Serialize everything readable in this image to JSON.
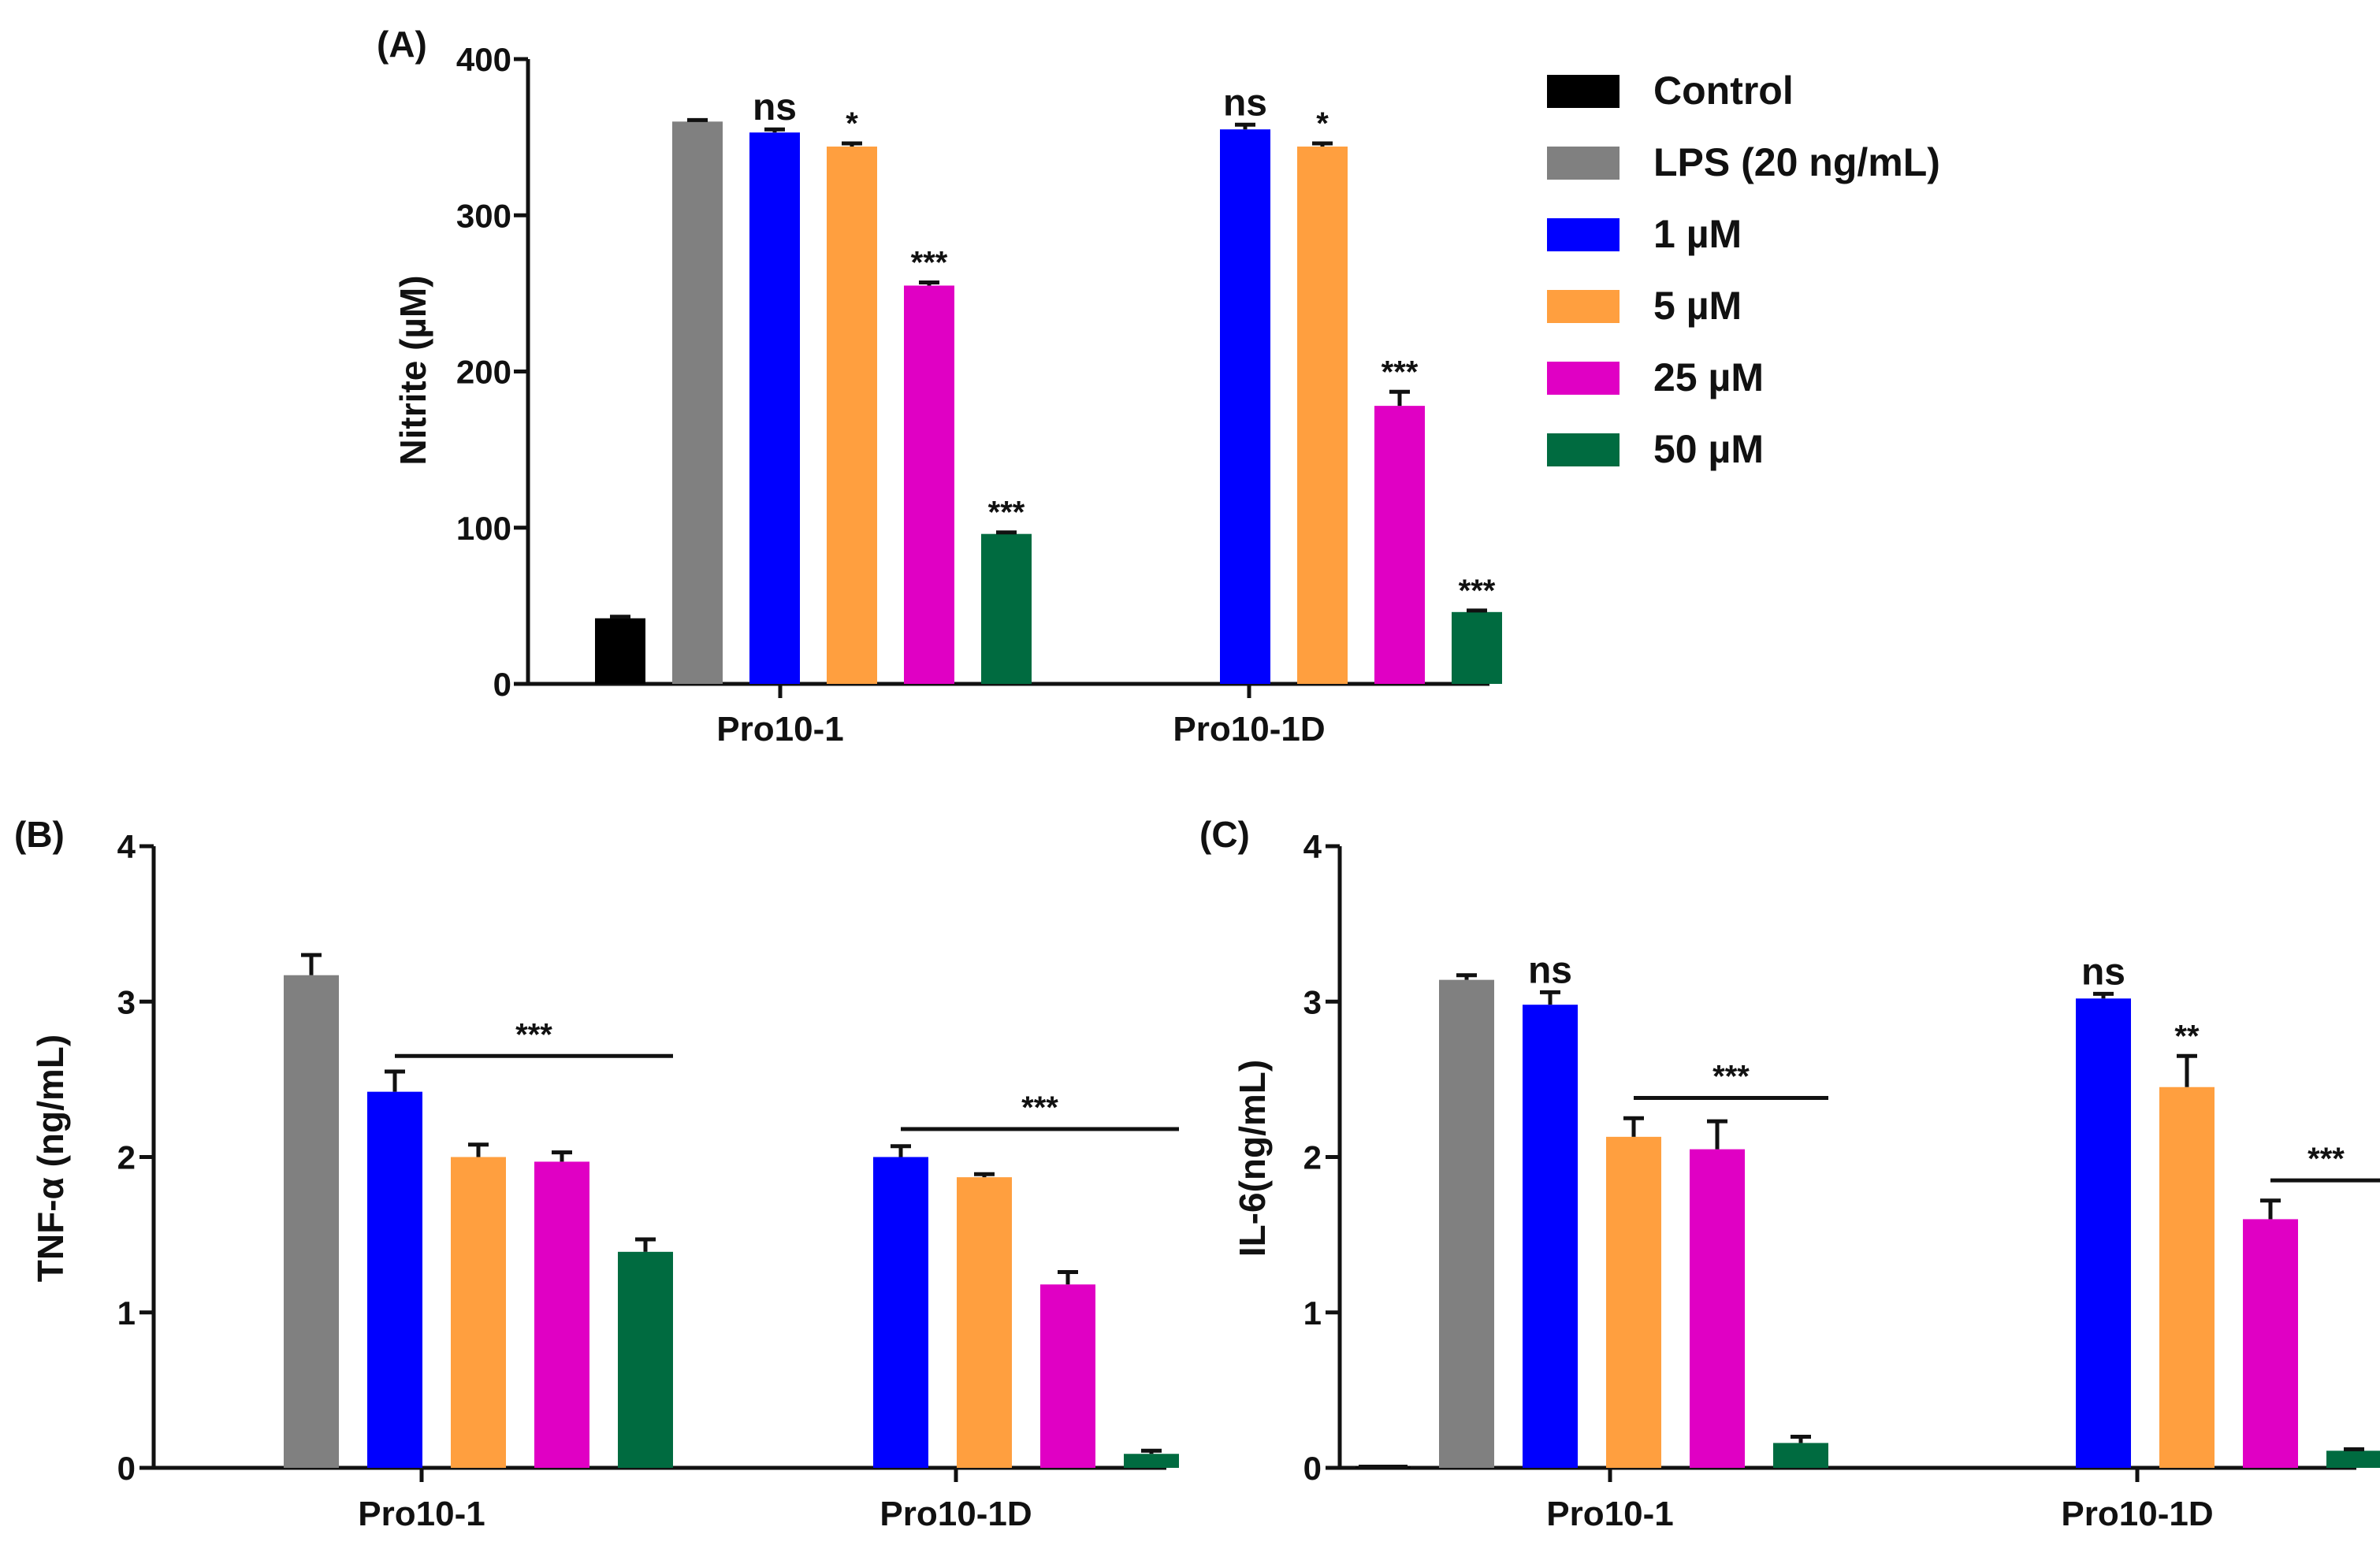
{
  "chart_data": [
    {
      "panel": "(A)",
      "type": "bar",
      "ylabel": "Nitrite (µM)",
      "ylim": [
        0,
        400
      ],
      "yticks": [
        "0",
        "100",
        "200",
        "300",
        "400"
      ],
      "categories": [
        "Pro10-1",
        "Pro10-1D"
      ],
      "series": [
        {
          "name": "Control",
          "color": "#000000",
          "values": [
            42,
            null
          ],
          "errors": [
            1,
            null
          ],
          "sig": [
            "",
            ""
          ]
        },
        {
          "name": "LPS (20 ng/mL)",
          "color": "#808080",
          "values": [
            360,
            null
          ],
          "errors": [
            1,
            null
          ],
          "sig": [
            "",
            ""
          ]
        },
        {
          "name": "1 µM",
          "color": "#0000ff",
          "values": [
            353,
            355
          ],
          "errors": [
            2,
            3
          ],
          "sig": [
            "ns",
            "ns"
          ]
        },
        {
          "name": "5 µM",
          "color": "#ff9f3f",
          "values": [
            344,
            344
          ],
          "errors": [
            2,
            2
          ],
          "sig": [
            "*",
            "*"
          ]
        },
        {
          "name": "25 µM",
          "color": "#e000c4",
          "values": [
            255,
            178
          ],
          "errors": [
            2,
            9
          ],
          "sig": [
            "***",
            "***"
          ]
        },
        {
          "name": "50 µM",
          "color": "#006b40",
          "values": [
            96,
            46
          ],
          "errors": [
            1,
            1
          ],
          "sig": [
            "***",
            "***"
          ]
        }
      ],
      "legend_position": "right"
    },
    {
      "panel": "(B)",
      "type": "bar",
      "ylabel": "TNF-α (ng/mL)",
      "ylim": [
        0,
        4
      ],
      "yticks": [
        "0",
        "1",
        "2",
        "3",
        "4"
      ],
      "categories": [
        "Pro10-1",
        "Pro10-1D"
      ],
      "series": [
        {
          "name": "Control",
          "color": "#000000",
          "values": [
            null,
            null
          ],
          "errors": [
            null,
            null
          ],
          "sig": [
            "",
            ""
          ]
        },
        {
          "name": "LPS (20 ng/mL)",
          "color": "#808080",
          "values": [
            3.17,
            null
          ],
          "errors": [
            0.13,
            null
          ],
          "sig": [
            "",
            ""
          ]
        },
        {
          "name": "1 µM",
          "color": "#0000ff",
          "values": [
            2.42,
            2.0
          ],
          "errors": [
            0.13,
            0.07
          ],
          "sig": [
            "",
            ""
          ]
        },
        {
          "name": "5 µM",
          "color": "#ff9f3f",
          "values": [
            2.0,
            1.87
          ],
          "errors": [
            0.08,
            0.02
          ],
          "sig": [
            "",
            ""
          ]
        },
        {
          "name": "25 µM",
          "color": "#e000c4",
          "values": [
            1.97,
            1.18
          ],
          "errors": [
            0.06,
            0.08
          ],
          "sig": [
            "",
            ""
          ]
        },
        {
          "name": "50 µM",
          "color": "#006b40",
          "values": [
            1.39,
            0.09
          ],
          "errors": [
            0.08,
            0.02
          ],
          "sig": [
            "",
            ""
          ]
        }
      ],
      "brackets": [
        {
          "label": "***",
          "category": 0,
          "from_series": 2,
          "to_series": 5,
          "value": 2.65
        },
        {
          "label": "***",
          "category": 1,
          "from_series": 2,
          "to_series": 5,
          "value": 2.18
        }
      ]
    },
    {
      "panel": "(C)",
      "type": "bar",
      "ylabel": "IL-6(ng/mL)",
      "ylim": [
        0,
        4
      ],
      "yticks": [
        "0",
        "1",
        "2",
        "3",
        "4"
      ],
      "categories": [
        "Pro10-1",
        "Pro10-1D"
      ],
      "series": [
        {
          "name": "Control",
          "color": "#000000",
          "values": [
            0.01,
            null
          ],
          "errors": [
            0,
            null
          ],
          "sig": [
            "",
            ""
          ]
        },
        {
          "name": "LPS (20 ng/mL)",
          "color": "#808080",
          "values": [
            3.14,
            null
          ],
          "errors": [
            0.03,
            null
          ],
          "sig": [
            "",
            ""
          ]
        },
        {
          "name": "1 µM",
          "color": "#0000ff",
          "values": [
            2.98,
            3.02
          ],
          "errors": [
            0.08,
            0.03
          ],
          "sig": [
            "ns",
            "ns"
          ]
        },
        {
          "name": "5 µM",
          "color": "#ff9f3f",
          "values": [
            2.13,
            2.45
          ],
          "errors": [
            0.12,
            0.2
          ],
          "sig": [
            "",
            "**"
          ]
        },
        {
          "name": "25 µM",
          "color": "#e000c4",
          "values": [
            2.05,
            1.6
          ],
          "errors": [
            0.18,
            0.12
          ],
          "sig": [
            "",
            ""
          ]
        },
        {
          "name": "50 µM",
          "color": "#006b40",
          "values": [
            0.16,
            0.11
          ],
          "errors": [
            0.04,
            0.01
          ],
          "sig": [
            "",
            ""
          ]
        }
      ],
      "brackets": [
        {
          "label": "***",
          "category": 0,
          "from_series": 3,
          "to_series": 5,
          "value": 2.38
        },
        {
          "label": "***",
          "category": 1,
          "from_series": 4,
          "to_series": 5,
          "value": 1.85
        }
      ]
    }
  ]
}
